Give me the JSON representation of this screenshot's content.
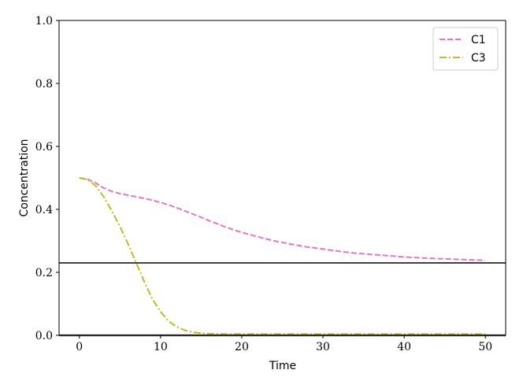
{
  "chart_data": {
    "type": "line",
    "title": "",
    "xlabel": "Time",
    "ylabel": "Concentration",
    "xlim": [
      -2.5,
      52.5
    ],
    "ylim": [
      0,
      1
    ],
    "xticks": [
      0,
      10,
      20,
      30,
      40,
      50
    ],
    "xtick_labels": [
      "0",
      "10",
      "20",
      "30",
      "40",
      "50"
    ],
    "yticks": [
      0.0,
      0.2,
      0.4,
      0.6,
      0.8,
      1.0
    ],
    "ytick_labels": [
      "0.0",
      "0.2",
      "0.4",
      "0.6",
      "0.8",
      "1.0"
    ],
    "grid": false,
    "legend_position": "top-right",
    "reference_lines": [
      {
        "axis": "y",
        "value": 0.23,
        "color": "#000000"
      },
      {
        "axis": "y",
        "value": 0.0,
        "color": "#555555"
      }
    ],
    "series": [
      {
        "name": "C1",
        "color": "#e377c2",
        "dash": "dashed",
        "x": [
          0,
          1,
          2,
          3,
          4,
          5,
          6,
          7,
          8,
          9,
          10,
          11,
          12,
          13,
          14,
          15,
          16,
          17,
          18,
          19,
          20,
          22,
          24,
          26,
          28,
          30,
          32,
          34,
          36,
          38,
          40,
          42,
          44,
          46,
          48,
          50
        ],
        "y": [
          0.5,
          0.496,
          0.484,
          0.468,
          0.457,
          0.45,
          0.445,
          0.44,
          0.435,
          0.429,
          0.422,
          0.414,
          0.405,
          0.395,
          0.385,
          0.375,
          0.364,
          0.354,
          0.344,
          0.335,
          0.327,
          0.313,
          0.3,
          0.29,
          0.281,
          0.274,
          0.267,
          0.261,
          0.257,
          0.253,
          0.249,
          0.246,
          0.244,
          0.242,
          0.24,
          0.238
        ]
      },
      {
        "name": "C3",
        "color": "#bcbd22",
        "dash": "dashdot",
        "x": [
          0,
          1,
          2,
          3,
          4,
          5,
          6,
          7,
          8,
          9,
          10,
          11,
          12,
          13,
          14,
          15,
          16,
          18,
          20,
          25,
          30,
          35,
          40,
          45,
          50
        ],
        "y": [
          0.5,
          0.495,
          0.475,
          0.44,
          0.395,
          0.345,
          0.29,
          0.23,
          0.17,
          0.115,
          0.075,
          0.045,
          0.027,
          0.016,
          0.01,
          0.007,
          0.005,
          0.004,
          0.004,
          0.004,
          0.004,
          0.004,
          0.004,
          0.004,
          0.004
        ]
      }
    ]
  }
}
